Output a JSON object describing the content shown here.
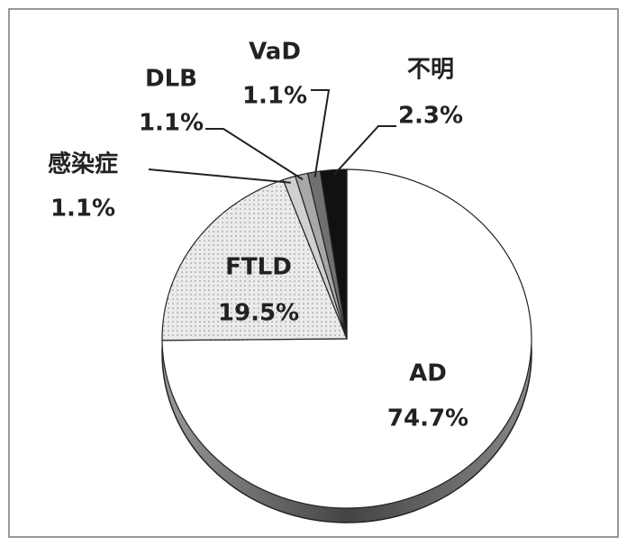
{
  "chart_data": {
    "type": "pie",
    "categories": [
      "AD",
      "FTLD",
      "感染症",
      "DLB",
      "VaD",
      "不明"
    ],
    "values": [
      74.7,
      19.5,
      1.1,
      1.1,
      1.1,
      2.3
    ],
    "value_labels": [
      "74.7%",
      "19.5%",
      "1.1%",
      "1.1%",
      "1.1%",
      "2.3%"
    ],
    "colors": [
      "#ffffff",
      "#ebebeb",
      "#d0d0d0",
      "#a8a8a8",
      "#707070",
      "#111111"
    ]
  }
}
